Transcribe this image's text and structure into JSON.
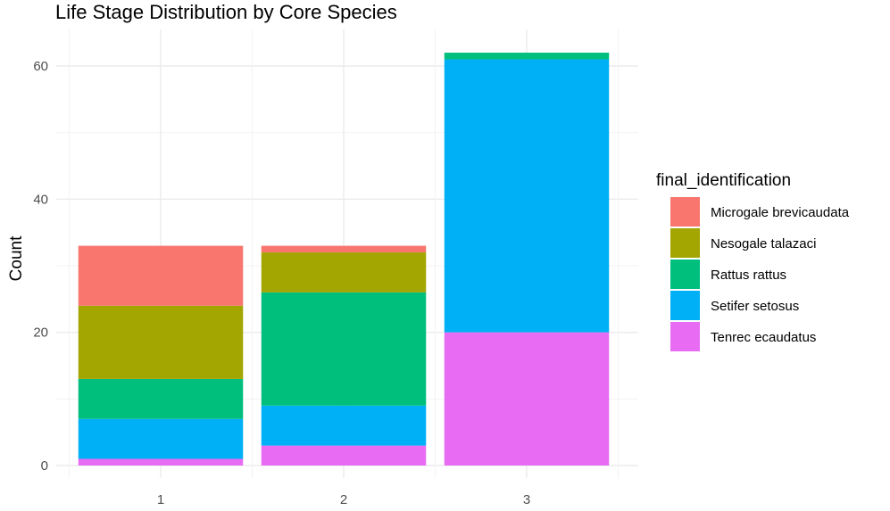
{
  "chart_data": {
    "type": "bar",
    "stacked": true,
    "title": "Life Stage Distribution by Core Species",
    "xlabel": "",
    "ylabel": "Count",
    "categories": [
      "1",
      "2",
      "3"
    ],
    "ylim": [
      0,
      62
    ],
    "yticks": [
      0,
      20,
      40,
      60
    ],
    "grid": true,
    "legend_title": "final_identification",
    "legend_position": "right",
    "series": [
      {
        "name": "Tenrec ecaudatus",
        "color": "#E76BF3",
        "values": [
          1,
          3,
          20
        ]
      },
      {
        "name": "Setifer setosus",
        "color": "#00B0F6",
        "values": [
          6,
          6,
          41
        ]
      },
      {
        "name": "Rattus rattus",
        "color": "#00BF7D",
        "values": [
          6,
          17,
          1
        ]
      },
      {
        "name": "Nesogale talazaci",
        "color": "#A3A500",
        "values": [
          11,
          6,
          0
        ]
      },
      {
        "name": "Microgale brevicaudata",
        "color": "#F8766D",
        "values": [
          9,
          1,
          0
        ]
      }
    ],
    "legend_order": [
      "Microgale brevicaudata",
      "Nesogale talazaci",
      "Rattus rattus",
      "Setifer setosus",
      "Tenrec ecaudatus"
    ]
  }
}
